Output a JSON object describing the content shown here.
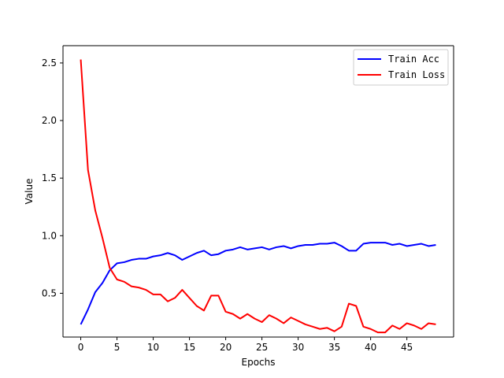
{
  "chart_data": {
    "type": "line",
    "title": "",
    "xlabel": "Epochs",
    "ylabel": "Value",
    "xlim": [
      -2.45,
      51.45
    ],
    "ylim": [
      0.12,
      2.65
    ],
    "xticks": [
      0,
      5,
      10,
      15,
      20,
      25,
      30,
      35,
      40,
      45
    ],
    "yticks": [
      0.5,
      1.0,
      1.5,
      2.0,
      2.5
    ],
    "ytick_labels": [
      "0.5",
      "1.0",
      "1.5",
      "2.0",
      "2.5"
    ],
    "grid": false,
    "legend": "top-right",
    "x": [
      0,
      1,
      2,
      3,
      4,
      5,
      6,
      7,
      8,
      9,
      10,
      11,
      12,
      13,
      14,
      15,
      16,
      17,
      18,
      19,
      20,
      21,
      22,
      23,
      24,
      25,
      26,
      27,
      28,
      29,
      30,
      31,
      32,
      33,
      34,
      35,
      36,
      37,
      38,
      39,
      40,
      41,
      42,
      43,
      44,
      45,
      46,
      47,
      48,
      49
    ],
    "series": [
      {
        "name": "Train Acc",
        "color": "#0000ff",
        "values": [
          0.23,
          0.36,
          0.51,
          0.59,
          0.7,
          0.76,
          0.77,
          0.79,
          0.8,
          0.8,
          0.82,
          0.83,
          0.85,
          0.83,
          0.79,
          0.82,
          0.85,
          0.87,
          0.83,
          0.84,
          0.87,
          0.88,
          0.9,
          0.88,
          0.89,
          0.9,
          0.88,
          0.9,
          0.91,
          0.89,
          0.91,
          0.92,
          0.92,
          0.93,
          0.93,
          0.94,
          0.91,
          0.87,
          0.87,
          0.93,
          0.94,
          0.94,
          0.94,
          0.92,
          0.93,
          0.91,
          0.92,
          0.93,
          0.91,
          0.92
        ]
      },
      {
        "name": "Train Loss",
        "color": "#ff0000",
        "values": [
          2.53,
          1.57,
          1.22,
          0.98,
          0.72,
          0.62,
          0.6,
          0.56,
          0.55,
          0.53,
          0.49,
          0.49,
          0.43,
          0.46,
          0.53,
          0.46,
          0.39,
          0.35,
          0.48,
          0.48,
          0.34,
          0.32,
          0.28,
          0.32,
          0.28,
          0.25,
          0.31,
          0.28,
          0.24,
          0.29,
          0.26,
          0.23,
          0.21,
          0.19,
          0.2,
          0.17,
          0.21,
          0.41,
          0.39,
          0.21,
          0.19,
          0.16,
          0.16,
          0.22,
          0.19,
          0.24,
          0.22,
          0.19,
          0.24,
          0.23
        ]
      }
    ]
  }
}
